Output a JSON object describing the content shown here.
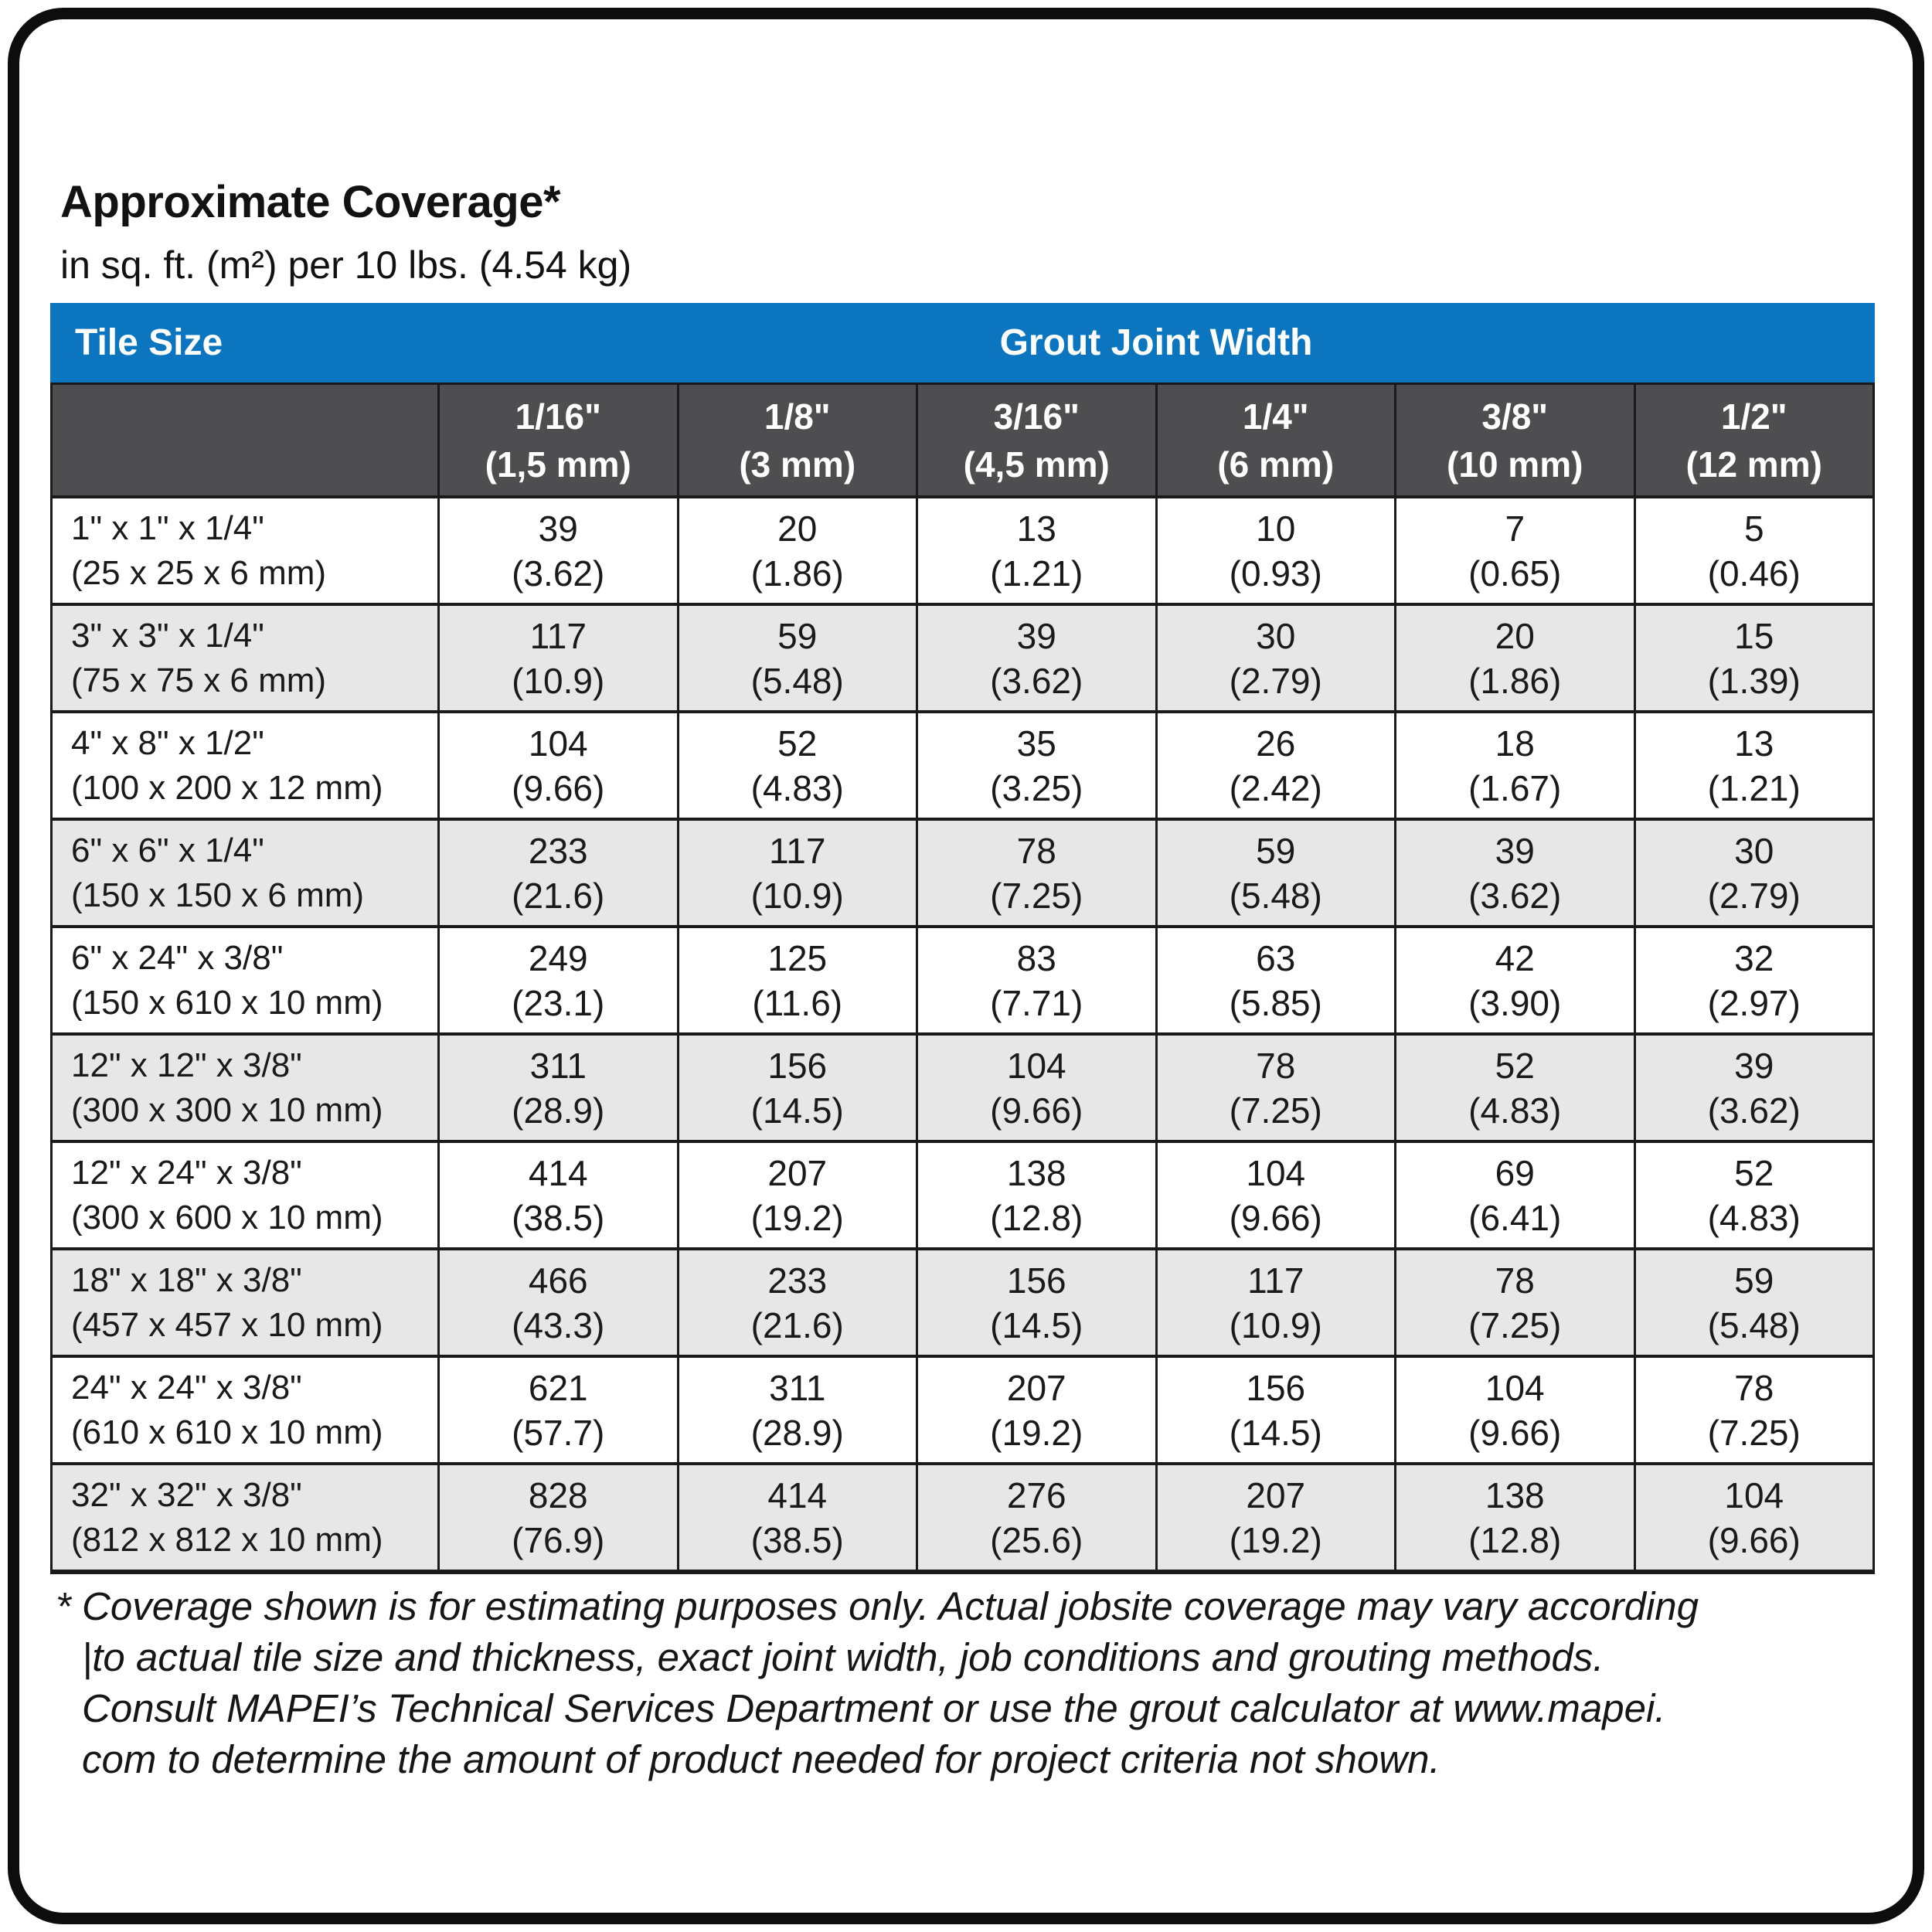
{
  "title": "Approximate Coverage*",
  "subtitle": "in sq. ft. (m²) per 10 lbs. (4.54 kg)",
  "colors": {
    "header_blue": "#0b76bf",
    "header_dark": "#4e4e50",
    "row_alt": "#e7e7e8",
    "border": "#1a1a1a",
    "text": "#1a1a1a"
  },
  "table": {
    "corner_label": "Tile Size",
    "group_header": "Grout Joint Width",
    "columns": [
      {
        "line1": "1/16\"",
        "line2": "(1,5 mm)"
      },
      {
        "line1": "1/8\"",
        "line2": "(3 mm)"
      },
      {
        "line1": "3/16\"",
        "line2": "(4,5 mm)"
      },
      {
        "line1": "1/4\"",
        "line2": "(6 mm)"
      },
      {
        "line1": "3/8\"",
        "line2": "(10 mm)"
      },
      {
        "line1": "1/2\"",
        "line2": "(12 mm)"
      }
    ],
    "rows": [
      {
        "size": "1\" x 1\" x 1/4\"",
        "metric": "(25 x 25 x 6 mm)",
        "cells": [
          {
            "v": "39",
            "m": "(3.62)"
          },
          {
            "v": "20",
            "m": "(1.86)"
          },
          {
            "v": "13",
            "m": "(1.21)"
          },
          {
            "v": "10",
            "m": "(0.93)"
          },
          {
            "v": "7",
            "m": "(0.65)"
          },
          {
            "v": "5",
            "m": "(0.46)"
          }
        ]
      },
      {
        "size": "3\" x 3\" x 1/4\"",
        "metric": "(75 x 75 x 6 mm)",
        "cells": [
          {
            "v": "117",
            "m": "(10.9)"
          },
          {
            "v": "59",
            "m": "(5.48)"
          },
          {
            "v": "39",
            "m": "(3.62)"
          },
          {
            "v": "30",
            "m": "(2.79)"
          },
          {
            "v": "20",
            "m": "(1.86)"
          },
          {
            "v": "15",
            "m": "(1.39)"
          }
        ]
      },
      {
        "size": "4\" x 8\" x 1/2\"",
        "metric": "(100 x 200 x 12 mm)",
        "cells": [
          {
            "v": "104",
            "m": "(9.66)"
          },
          {
            "v": "52",
            "m": "(4.83)"
          },
          {
            "v": "35",
            "m": "(3.25)"
          },
          {
            "v": "26",
            "m": "(2.42)"
          },
          {
            "v": "18",
            "m": "(1.67)"
          },
          {
            "v": "13",
            "m": "(1.21)"
          }
        ]
      },
      {
        "size": "6\" x 6\" x 1/4\"",
        "metric": "(150 x 150 x 6 mm)",
        "cells": [
          {
            "v": "233",
            "m": "(21.6)"
          },
          {
            "v": "117",
            "m": "(10.9)"
          },
          {
            "v": "78",
            "m": "(7.25)"
          },
          {
            "v": "59",
            "m": "(5.48)"
          },
          {
            "v": "39",
            "m": "(3.62)"
          },
          {
            "v": "30",
            "m": "(2.79)"
          }
        ]
      },
      {
        "size": "6\" x 24\" x 3/8\"",
        "metric": "(150 x 610 x 10 mm)",
        "cells": [
          {
            "v": "249",
            "m": "(23.1)"
          },
          {
            "v": "125",
            "m": "(11.6)"
          },
          {
            "v": "83",
            "m": "(7.71)"
          },
          {
            "v": "63",
            "m": "(5.85)"
          },
          {
            "v": "42",
            "m": "(3.90)"
          },
          {
            "v": "32",
            "m": "(2.97)"
          }
        ]
      },
      {
        "size": "12\" x 12\" x 3/8\"",
        "metric": "(300 x 300 x 10 mm)",
        "cells": [
          {
            "v": "311",
            "m": "(28.9)"
          },
          {
            "v": "156",
            "m": "(14.5)"
          },
          {
            "v": "104",
            "m": "(9.66)"
          },
          {
            "v": "78",
            "m": "(7.25)"
          },
          {
            "v": "52",
            "m": "(4.83)"
          },
          {
            "v": "39",
            "m": "(3.62)"
          }
        ]
      },
      {
        "size": "12\" x 24\" x 3/8\"",
        "metric": "(300 x 600 x 10 mm)",
        "cells": [
          {
            "v": "414",
            "m": "(38.5)"
          },
          {
            "v": "207",
            "m": "(19.2)"
          },
          {
            "v": "138",
            "m": "(12.8)"
          },
          {
            "v": "104",
            "m": "(9.66)"
          },
          {
            "v": "69",
            "m": "(6.41)"
          },
          {
            "v": "52",
            "m": "(4.83)"
          }
        ]
      },
      {
        "size": "18\" x 18\" x 3/8\"",
        "metric": "(457 x 457 x 10 mm)",
        "cells": [
          {
            "v": "466",
            "m": "(43.3)"
          },
          {
            "v": "233",
            "m": "(21.6)"
          },
          {
            "v": "156",
            "m": "(14.5)"
          },
          {
            "v": "117",
            "m": "(10.9)"
          },
          {
            "v": "78",
            "m": "(7.25)"
          },
          {
            "v": "59",
            "m": "(5.48)"
          }
        ]
      },
      {
        "size": "24\" x 24\" x 3/8\"",
        "metric": "(610 x 610 x 10 mm)",
        "cells": [
          {
            "v": "621",
            "m": "(57.7)"
          },
          {
            "v": "311",
            "m": "(28.9)"
          },
          {
            "v": "207",
            "m": "(19.2)"
          },
          {
            "v": "156",
            "m": "(14.5)"
          },
          {
            "v": "104",
            "m": "(9.66)"
          },
          {
            "v": "78",
            "m": "(7.25)"
          }
        ]
      },
      {
        "size": "32\" x 32\" x 3/8\"",
        "metric": "(812 x 812 x 10 mm)",
        "cells": [
          {
            "v": "828",
            "m": "(76.9)"
          },
          {
            "v": "414",
            "m": "(38.5)"
          },
          {
            "v": "276",
            "m": "(25.6)"
          },
          {
            "v": "207",
            "m": "(19.2)"
          },
          {
            "v": "138",
            "m": "(12.8)"
          },
          {
            "v": "104",
            "m": "(9.66)"
          }
        ]
      }
    ]
  },
  "footnote": {
    "lines": [
      "* Coverage shown is for estimating purposes only. Actual jobsite coverage may vary according",
      "|to actual tile size and thickness, exact joint width, job conditions and grouting methods.",
      "Consult MAPEI’s Technical Services Department or use the grout calculator at www.mapei.",
      "com to determine the amount of product needed for project criteria not shown."
    ]
  }
}
